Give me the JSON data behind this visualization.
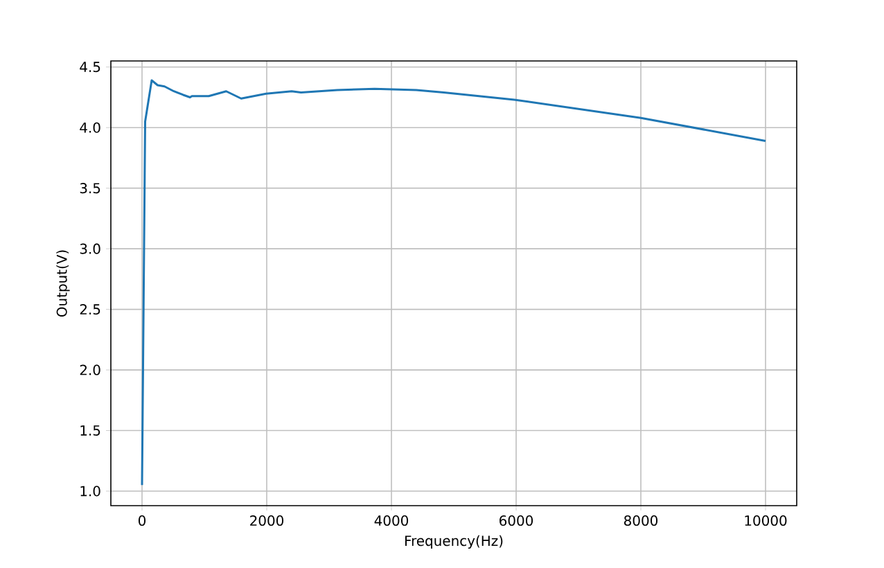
{
  "chart_data": {
    "type": "line",
    "xlabel": "Frequency(Hz)",
    "ylabel": "Output(V)",
    "x": [
      0,
      50,
      155,
      250,
      360,
      510,
      660,
      770,
      800,
      1070,
      1350,
      1470,
      1590,
      1990,
      2400,
      2550,
      3130,
      3730,
      4400,
      4840,
      5970,
      8000,
      10000
    ],
    "series": [
      {
        "color": "#1f77b4",
        "values": [
          1.05,
          4.05,
          4.39,
          4.35,
          4.34,
          4.3,
          4.27,
          4.25,
          4.26,
          4.26,
          4.3,
          4.27,
          4.24,
          4.28,
          4.3,
          4.29,
          4.31,
          4.32,
          4.31,
          4.29,
          4.23,
          4.08,
          3.89
        ]
      }
    ],
    "xlim": [
      -500,
      10500
    ],
    "ylim": [
      0.88,
      4.55
    ],
    "xticks": [
      0,
      2000,
      4000,
      6000,
      8000,
      10000
    ],
    "yticks": [
      {
        "value": 1.0,
        "label": "1.0"
      },
      {
        "value": 1.5,
        "label": "1.5"
      },
      {
        "value": 2.0,
        "label": "2.0"
      },
      {
        "value": 2.5,
        "label": "2.5"
      },
      {
        "value": 3.0,
        "label": "3.0"
      },
      {
        "value": 3.5,
        "label": "3.5"
      },
      {
        "value": 4.0,
        "label": "4.0"
      },
      {
        "value": 4.5,
        "label": "4.5"
      }
    ],
    "grid": true,
    "marker": "none",
    "line_style": "solid"
  }
}
